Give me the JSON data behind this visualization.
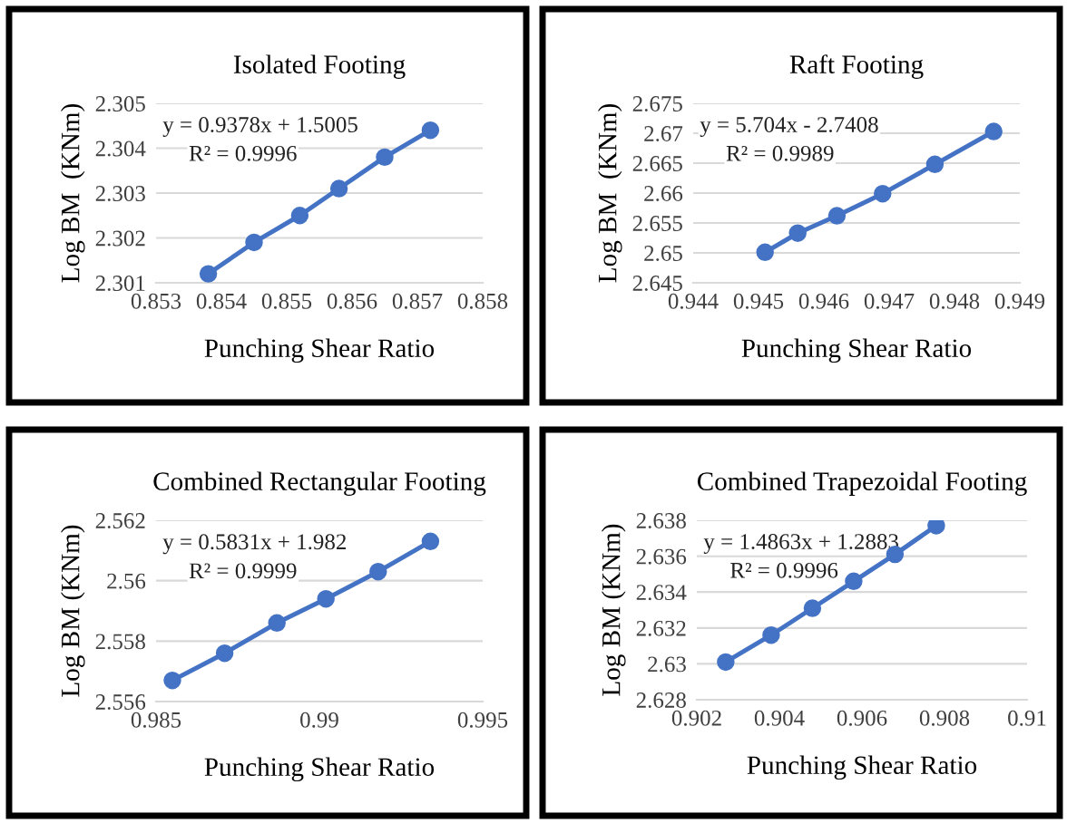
{
  "chart_data": [
    {
      "type": "line",
      "title": "Isolated Footing",
      "xlabel": "Punching Shear Ratio",
      "ylabel": "Log BM  (KNm)",
      "annotations": [
        "y = 0.9378x + 1.5005",
        "R² = 0.9996"
      ],
      "series": [
        {
          "color": "#4472c4",
          "x": [
            0.8538,
            0.8545,
            0.8552,
            0.8558,
            0.8565,
            0.8572
          ],
          "values": [
            2.3012,
            2.3019,
            2.3025,
            2.3031,
            2.3038,
            2.3044
          ]
        }
      ],
      "xlim": [
        0.853,
        0.858
      ],
      "xticks": [
        0.853,
        0.854,
        0.855,
        0.856,
        0.857,
        0.858
      ],
      "ylim": [
        2.301,
        2.305
      ],
      "yticks": [
        2.301,
        2.302,
        2.303,
        2.304,
        2.305
      ],
      "grid": "y",
      "marker": "circle",
      "line_style": "solid"
    },
    {
      "type": "line",
      "title": "Raft Footing",
      "xlabel": "Punching Shear Ratio",
      "ylabel": "Log BM  (KNm)",
      "annotations": [
        "y = 5.704x - 2.7408",
        "R² = 0.9989"
      ],
      "series": [
        {
          "color": "#4472c4",
          "x": [
            0.9451,
            0.9456,
            0.9462,
            0.9469,
            0.9477,
            0.9486
          ],
          "values": [
            2.6501,
            2.6533,
            2.6562,
            2.6599,
            2.6648,
            2.6703
          ]
        }
      ],
      "xlim": [
        0.944,
        0.949
      ],
      "xticks": [
        0.944,
        0.945,
        0.946,
        0.947,
        0.948,
        0.949
      ],
      "ylim": [
        2.645,
        2.675
      ],
      "yticks": [
        2.645,
        2.65,
        2.655,
        2.66,
        2.665,
        2.67,
        2.675
      ],
      "grid": "y",
      "marker": "circle",
      "line_style": "solid"
    },
    {
      "type": "line",
      "title": "Combined Rectangular Footing",
      "xlabel": "Punching Shear Ratio",
      "ylabel": "Log BM (KNm)",
      "annotations": [
        "y = 0.5831x + 1.982",
        "R² = 0.9999"
      ],
      "series": [
        {
          "color": "#4472c4",
          "x": [
            0.9855,
            0.9871,
            0.9887,
            0.9902,
            0.9918,
            0.9934
          ],
          "values": [
            2.5567,
            2.5576,
            2.5586,
            2.5594,
            2.5603,
            2.5613
          ]
        }
      ],
      "xlim": [
        0.985,
        0.995
      ],
      "xticks": [
        0.985,
        0.99,
        0.995
      ],
      "ylim": [
        2.556,
        2.562
      ],
      "yticks": [
        2.556,
        2.558,
        2.56,
        2.562
      ],
      "grid": "y",
      "marker": "circle",
      "line_style": "solid"
    },
    {
      "type": "line",
      "title": "Combined Trapezoidal Footing",
      "xlabel": "Punching Shear Ratio",
      "ylabel": "Log BM (KNm)",
      "annotations": [
        "y = 1.4863x + 1.2883",
        "R² = 0.9996"
      ],
      "series": [
        {
          "color": "#4472c4",
          "x": [
            0.9027,
            0.9038,
            0.9048,
            0.9058,
            0.9068,
            0.9078
          ],
          "values": [
            2.6301,
            2.6316,
            2.6331,
            2.6346,
            2.6361,
            2.6377
          ]
        }
      ],
      "xlim": [
        0.902,
        0.91
      ],
      "xticks": [
        0.902,
        0.904,
        0.906,
        0.908,
        0.91
      ],
      "ylim": [
        2.628,
        2.638
      ],
      "yticks": [
        2.628,
        2.63,
        2.632,
        2.634,
        2.636,
        2.638
      ],
      "grid": "y",
      "marker": "circle",
      "line_style": "solid"
    }
  ]
}
